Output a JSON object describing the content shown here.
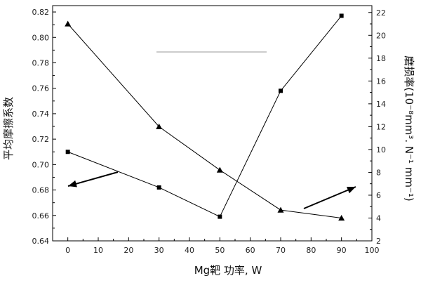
{
  "chart_data": {
    "type": "line",
    "xlabel": "Mg靶 功率, W",
    "ylabel_left": "平均摩擦系数",
    "ylabel_right": "磨损率(10⁻⁸mm³. N⁻¹ mm⁻¹)",
    "xlim": [
      -5,
      100
    ],
    "ylim_left": [
      0.64,
      0.825
    ],
    "ylim_right": [
      2,
      22.6
    ],
    "x_ticks": [
      0,
      10,
      20,
      30,
      40,
      50,
      60,
      70,
      80,
      90,
      100
    ],
    "y_left_ticks": [
      0.64,
      0.66,
      0.68,
      0.7,
      0.72,
      0.74,
      0.76,
      0.78,
      0.8,
      0.82
    ],
    "y_right_ticks": [
      2,
      4,
      6,
      8,
      10,
      12,
      14,
      16,
      18,
      20,
      22
    ],
    "series": [
      {
        "axis": "left",
        "marker": "square",
        "x": [
          0,
          30,
          50,
          70,
          90
        ],
        "values": [
          0.71,
          0.682,
          0.659,
          0.758,
          0.817
        ]
      },
      {
        "axis": "right",
        "marker": "triangle",
        "x": [
          0,
          30,
          50,
          70,
          90
        ],
        "values": [
          21.0,
          12.0,
          8.2,
          4.7,
          4.0
        ]
      }
    ],
    "annotations": [
      {
        "type": "arrow",
        "points_to": "left-axis"
      },
      {
        "type": "arrow",
        "points_to": "right-axis"
      },
      {
        "type": "line",
        "note": "thin horizontal gray line"
      }
    ],
    "grid": false,
    "line_color": "#000000",
    "annotation_line_color": "#999999"
  }
}
